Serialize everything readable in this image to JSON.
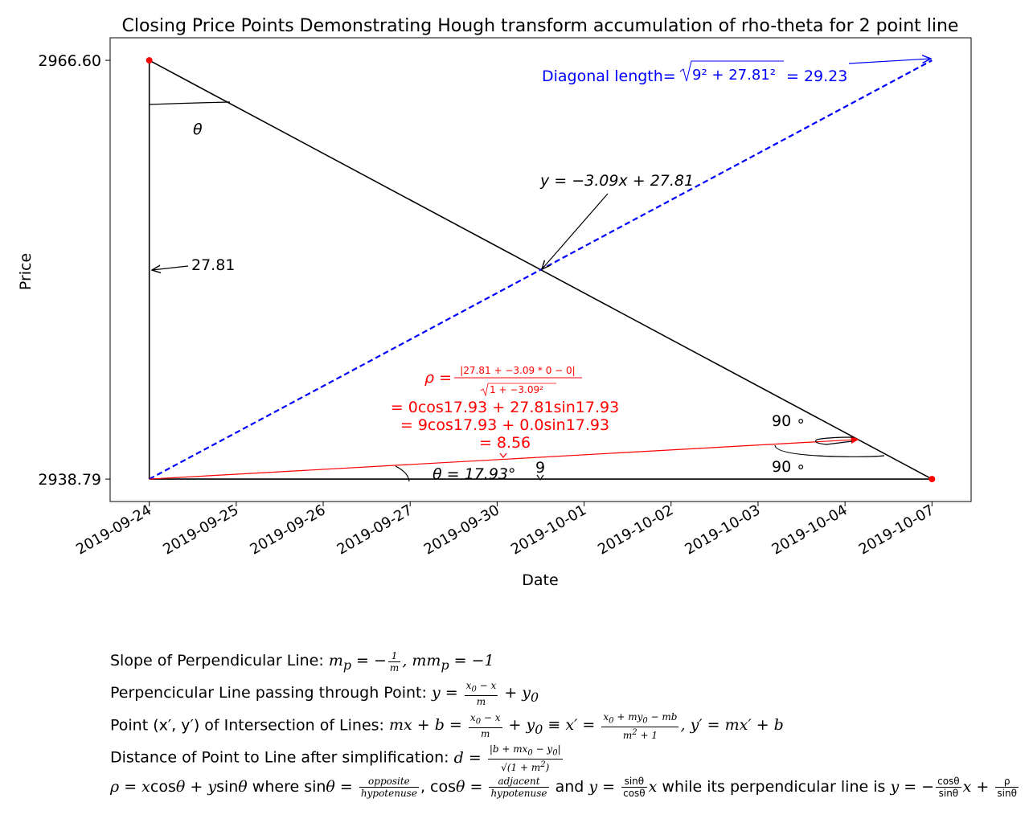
{
  "chart_data": {
    "type": "line",
    "title": "Closing Price Points Demonstrating Hough transform accumulation of rho-theta for 2 point line",
    "xlabel": "Date",
    "ylabel": "Price",
    "x_tick_labels": [
      "2019-09-24",
      "2019-09-25",
      "2019-09-26",
      "2019-09-27",
      "2019-09-30",
      "2019-10-01",
      "2019-10-02",
      "2019-10-03",
      "2019-10-04",
      "2019-10-07"
    ],
    "y_tick_labels": [
      "2938.79",
      "2966.60"
    ],
    "xlim": [
      -0.45,
      9.45
    ],
    "ylim": [
      2937.3,
      2968.1
    ],
    "y_ticks": [
      2938.79,
      2966.6
    ],
    "grid": false,
    "points": [
      {
        "x": 0,
        "y": 2966.6,
        "color": "#ff0000"
      },
      {
        "x": 9,
        "y": 2938.79,
        "color": "#ff0000"
      }
    ],
    "series": [
      {
        "values_x": [
          0,
          9
        ],
        "values_y": [
          2966.6,
          2938.79
        ],
        "color": "#000000",
        "style": "solid"
      },
      {
        "values_x": [
          0,
          0
        ],
        "values_y": [
          2938.79,
          2966.6
        ],
        "color": "#000000",
        "style": "solid"
      },
      {
        "values_x": [
          0,
          9
        ],
        "values_y": [
          2938.79,
          2938.79
        ],
        "color": "#000000",
        "style": "solid"
      },
      {
        "values_x": [
          0,
          9
        ],
        "values_y": [
          2938.79,
          2966.6
        ],
        "color": "#0000ff",
        "style": "dashed"
      },
      {
        "values_x": [
          0,
          8.15
        ],
        "values_y": [
          2938.79,
          2941.42
        ],
        "color": "#ff0000",
        "style": "solid-arrow"
      }
    ],
    "annotations": {
      "line_eq": "y = −3.09x + 27.81",
      "intercept_label": "27.81",
      "theta_top": "θ",
      "theta_bottom": "θ = 17.93°",
      "nine_label": "9",
      "right_angle_upper": "90 ∘",
      "right_angle_lower": "90 ∘",
      "diag_prefix": "Diagonal length=",
      "diag_radicand": "9² + 27.81²",
      "diag_result": "= 29.23",
      "rho_prefix": "ρ =",
      "rho_num": "|27.81 + −3.09 * 0 − 0|",
      "rho_den": "1 + −3.09²",
      "rho_line2": "= 0cos17.93 + 27.81sin17.93",
      "rho_line3": "= 9cos17.93 + 0.0sin17.93",
      "rho_line4": "= 8.56"
    }
  },
  "notes": {
    "n1_label": "Slope of Perpendicular Line:",
    "n2_label": "Perpencicular Line passing through Point:",
    "n3_label": "Point (x′, y′) of Intersection of Lines:",
    "n4_label": "Distance of Point to Line after simplification:",
    "n5_mid1": "where",
    "n5_mid2": "and",
    "n5_mid3": "while its perpendicular line is"
  },
  "colors": {
    "red": "#ff0000",
    "blue": "#0000ff",
    "black": "#000000"
  }
}
